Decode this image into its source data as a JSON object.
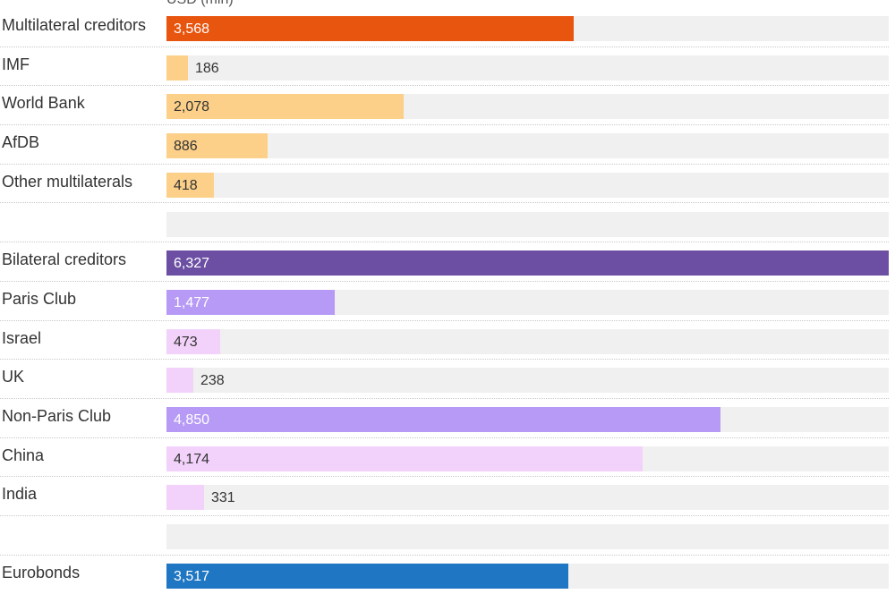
{
  "chart_data": {
    "type": "bar",
    "orientation": "horizontal",
    "unit_label": "USD (mln)",
    "xlim": [
      0,
      6327
    ],
    "grid": false,
    "rows": [
      {
        "label": "Multilateral creditors",
        "value": 3568,
        "display": "3,568",
        "color": "#e8550f",
        "value_color": "#ffffff"
      },
      {
        "label": "IMF",
        "value": 186,
        "display": "186",
        "color": "#fcd089",
        "value_color": "#333333"
      },
      {
        "label": "World Bank",
        "value": 2078,
        "display": "2,078",
        "color": "#fcd089",
        "value_color": "#333333"
      },
      {
        "label": "AfDB",
        "value": 886,
        "display": "886",
        "color": "#fcd089",
        "value_color": "#333333"
      },
      {
        "label": "Other multilaterals",
        "value": 418,
        "display": "418",
        "color": "#fcd089",
        "value_color": "#333333"
      },
      {
        "label": "",
        "value": null,
        "display": "",
        "color": "",
        "value_color": ""
      },
      {
        "label": "Bilateral creditors",
        "value": 6327,
        "display": "6,327",
        "color": "#6c4fa3",
        "value_color": "#ffffff"
      },
      {
        "label": "Paris Club",
        "value": 1477,
        "display": "1,477",
        "color": "#b69af5",
        "value_color": "#ffffff"
      },
      {
        "label": "Israel",
        "value": 473,
        "display": "473",
        "color": "#f2d2fa",
        "value_color": "#333333"
      },
      {
        "label": "UK",
        "value": 238,
        "display": "238",
        "color": "#f2d2fa",
        "value_color": "#333333"
      },
      {
        "label": "Non-Paris Club",
        "value": 4850,
        "display": "4,850",
        "color": "#b69af5",
        "value_color": "#ffffff"
      },
      {
        "label": "China",
        "value": 4174,
        "display": "4,174",
        "color": "#f2d2fa",
        "value_color": "#333333"
      },
      {
        "label": "India",
        "value": 331,
        "display": "331",
        "color": "#f2d2fa",
        "value_color": "#333333"
      },
      {
        "label": "",
        "value": null,
        "display": "",
        "color": "",
        "value_color": ""
      },
      {
        "label": "Eurobonds",
        "value": 3517,
        "display": "3,517",
        "color": "#1f76c2",
        "value_color": "#ffffff"
      }
    ]
  }
}
